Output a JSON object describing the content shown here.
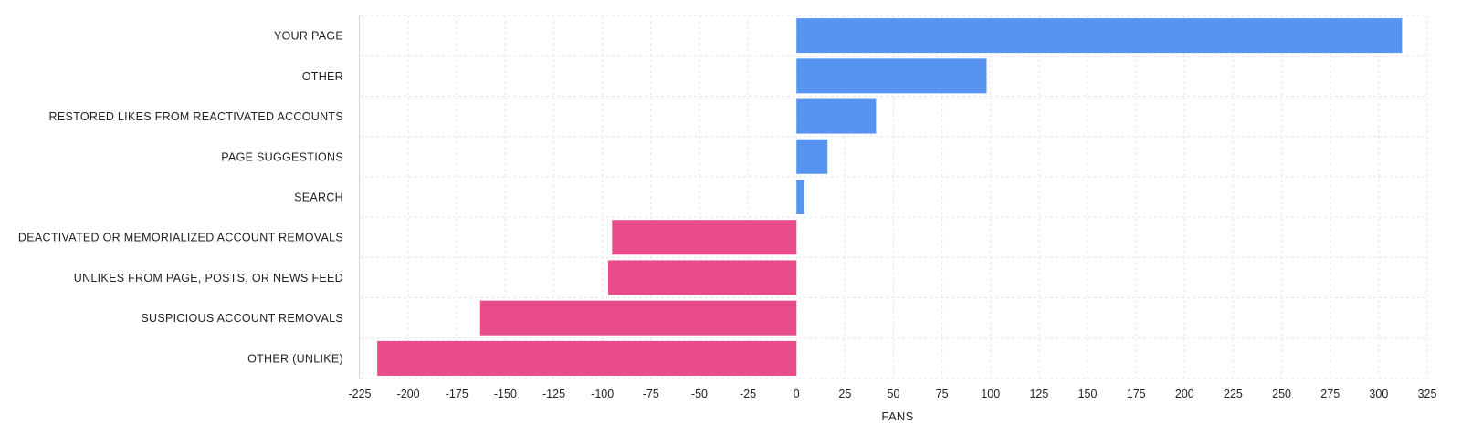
{
  "chart_data": {
    "type": "bar",
    "orientation": "horizontal",
    "categories": [
      "YOUR PAGE",
      "OTHER",
      "RESTORED LIKES FROM REACTIVATED ACCOUNTS",
      "PAGE SUGGESTIONS",
      "SEARCH",
      "DEACTIVATED OR MEMORIALIZED ACCOUNT REMOVALS",
      "UNLIKES FROM PAGE, POSTS, OR NEWS FEED",
      "SUSPICIOUS ACCOUNT REMOVALS",
      "OTHER (UNLIKE)"
    ],
    "values": [
      312,
      98,
      41,
      16,
      4,
      -95,
      -97,
      -163,
      -216
    ],
    "xlabel": "FANS",
    "ylabel": "",
    "xlim": [
      -225,
      325
    ],
    "xticks": [
      -225,
      -200,
      -175,
      -150,
      -125,
      -100,
      -75,
      -50,
      -25,
      0,
      25,
      50,
      75,
      100,
      125,
      150,
      175,
      200,
      225,
      250,
      275,
      300,
      325
    ],
    "grid": true,
    "legend": "none",
    "colors": {
      "positive": "#5794f2",
      "negative": "#e84c8a",
      "grid": "#e6e6e6",
      "axis": "#d9d9d9"
    }
  }
}
